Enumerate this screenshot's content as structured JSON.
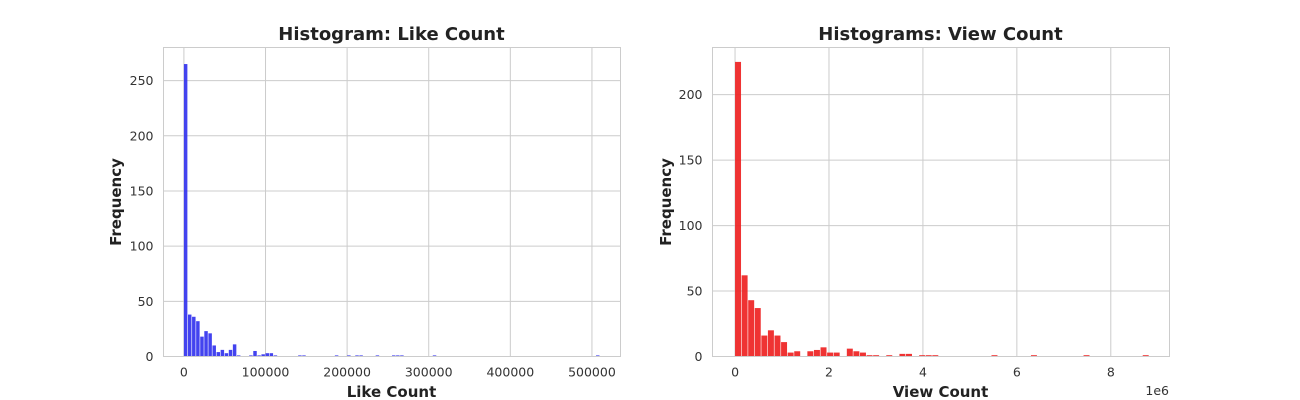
{
  "chart_data": [
    {
      "type": "bar",
      "title": "Histogram: Like Count",
      "xlabel": "Like Count",
      "ylabel": "Frequency",
      "color": "#3333ee",
      "xlim": [
        -25000,
        535000
      ],
      "ylim": [
        0,
        280
      ],
      "xticks": [
        0,
        100000,
        200000,
        300000,
        400000,
        500000
      ],
      "xtick_labels": [
        "0",
        "100000",
        "200000",
        "300000",
        "400000",
        "500000"
      ],
      "yticks": [
        0,
        50,
        100,
        150,
        200,
        250
      ],
      "ytick_labels": [
        "0",
        "50",
        "100",
        "150",
        "200",
        "250"
      ],
      "grid": true,
      "bins": [
        {
          "x0": 0,
          "x1": 5000,
          "count": 265
        },
        {
          "x0": 5000,
          "x1": 10000,
          "count": 38
        },
        {
          "x0": 10000,
          "x1": 15000,
          "count": 36
        },
        {
          "x0": 15000,
          "x1": 20000,
          "count": 32
        },
        {
          "x0": 20000,
          "x1": 25000,
          "count": 18
        },
        {
          "x0": 25000,
          "x1": 30000,
          "count": 23
        },
        {
          "x0": 30000,
          "x1": 35000,
          "count": 21
        },
        {
          "x0": 35000,
          "x1": 40000,
          "count": 10
        },
        {
          "x0": 40000,
          "x1": 45000,
          "count": 4
        },
        {
          "x0": 45000,
          "x1": 50000,
          "count": 6
        },
        {
          "x0": 50000,
          "x1": 55000,
          "count": 3
        },
        {
          "x0": 55000,
          "x1": 60000,
          "count": 6
        },
        {
          "x0": 60000,
          "x1": 65000,
          "count": 11
        },
        {
          "x0": 65000,
          "x1": 70000,
          "count": 1
        },
        {
          "x0": 80000,
          "x1": 85000,
          "count": 1
        },
        {
          "x0": 85000,
          "x1": 90000,
          "count": 5
        },
        {
          "x0": 90000,
          "x1": 95000,
          "count": 1
        },
        {
          "x0": 95000,
          "x1": 100000,
          "count": 2
        },
        {
          "x0": 100000,
          "x1": 105000,
          "count": 3
        },
        {
          "x0": 105000,
          "x1": 110000,
          "count": 3
        },
        {
          "x0": 110000,
          "x1": 115000,
          "count": 1
        },
        {
          "x0": 140000,
          "x1": 145000,
          "count": 1
        },
        {
          "x0": 145000,
          "x1": 150000,
          "count": 1
        },
        {
          "x0": 185000,
          "x1": 190000,
          "count": 1
        },
        {
          "x0": 200000,
          "x1": 205000,
          "count": 1
        },
        {
          "x0": 210000,
          "x1": 215000,
          "count": 1
        },
        {
          "x0": 215000,
          "x1": 220000,
          "count": 1
        },
        {
          "x0": 235000,
          "x1": 240000,
          "count": 1
        },
        {
          "x0": 255000,
          "x1": 260000,
          "count": 1
        },
        {
          "x0": 260000,
          "x1": 265000,
          "count": 1
        },
        {
          "x0": 265000,
          "x1": 270000,
          "count": 1
        },
        {
          "x0": 305000,
          "x1": 310000,
          "count": 1
        },
        {
          "x0": 505000,
          "x1": 510000,
          "count": 1
        }
      ]
    },
    {
      "type": "bar",
      "title": "Histograms: View Count",
      "xlabel": "View Count",
      "ylabel": "Frequency",
      "x_offset_label": "1e6",
      "color": "#ee2222",
      "xlim": [
        -0.48,
        9.25
      ],
      "ylim": [
        0,
        236
      ],
      "xticks": [
        0,
        2,
        4,
        6,
        8
      ],
      "xtick_labels": [
        "0",
        "2",
        "4",
        "6",
        "8"
      ],
      "yticks": [
        0,
        50,
        100,
        150,
        200
      ],
      "ytick_labels": [
        "0",
        "50",
        "100",
        "150",
        "200"
      ],
      "grid": true,
      "bins": [
        {
          "x0": 0.0,
          "x1": 0.14,
          "count": 225
        },
        {
          "x0": 0.14,
          "x1": 0.28,
          "count": 62
        },
        {
          "x0": 0.28,
          "x1": 0.42,
          "count": 43
        },
        {
          "x0": 0.42,
          "x1": 0.56,
          "count": 37
        },
        {
          "x0": 0.56,
          "x1": 0.7,
          "count": 16
        },
        {
          "x0": 0.7,
          "x1": 0.84,
          "count": 20
        },
        {
          "x0": 0.84,
          "x1": 0.98,
          "count": 16
        },
        {
          "x0": 0.98,
          "x1": 1.12,
          "count": 11
        },
        {
          "x0": 1.12,
          "x1": 1.26,
          "count": 3
        },
        {
          "x0": 1.26,
          "x1": 1.4,
          "count": 4
        },
        {
          "x0": 1.54,
          "x1": 1.68,
          "count": 4
        },
        {
          "x0": 1.68,
          "x1": 1.82,
          "count": 5
        },
        {
          "x0": 1.82,
          "x1": 1.96,
          "count": 7
        },
        {
          "x0": 1.96,
          "x1": 2.1,
          "count": 3
        },
        {
          "x0": 2.1,
          "x1": 2.24,
          "count": 3
        },
        {
          "x0": 2.38,
          "x1": 2.52,
          "count": 6
        },
        {
          "x0": 2.52,
          "x1": 2.66,
          "count": 4
        },
        {
          "x0": 2.66,
          "x1": 2.8,
          "count": 3
        },
        {
          "x0": 2.8,
          "x1": 2.94,
          "count": 1
        },
        {
          "x0": 2.94,
          "x1": 3.08,
          "count": 1
        },
        {
          "x0": 3.22,
          "x1": 3.36,
          "count": 1
        },
        {
          "x0": 3.5,
          "x1": 3.64,
          "count": 2
        },
        {
          "x0": 3.64,
          "x1": 3.78,
          "count": 2
        },
        {
          "x0": 3.92,
          "x1": 4.06,
          "count": 1
        },
        {
          "x0": 4.06,
          "x1": 4.2,
          "count": 1
        },
        {
          "x0": 4.2,
          "x1": 4.34,
          "count": 1
        },
        {
          "x0": 5.46,
          "x1": 5.6,
          "count": 1
        },
        {
          "x0": 6.3,
          "x1": 6.44,
          "count": 1
        },
        {
          "x0": 7.42,
          "x1": 7.56,
          "count": 1
        },
        {
          "x0": 8.68,
          "x1": 8.82,
          "count": 1
        }
      ]
    }
  ]
}
